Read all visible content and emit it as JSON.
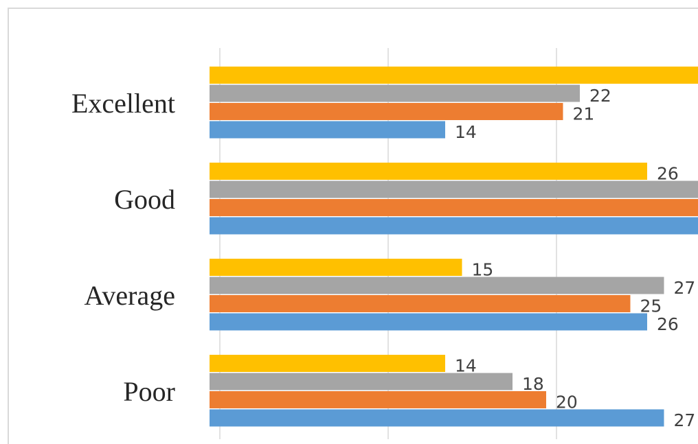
{
  "chart_data": {
    "type": "hbar",
    "categories": [
      "Excellent",
      "Good",
      "Average",
      "Poor"
    ],
    "series": [
      {
        "color": "#5b9bd5",
        "values": [
          14,
          32,
          26,
          27
        ]
      },
      {
        "color": "#ed7d31",
        "values": [
          21,
          31,
          25,
          20
        ]
      },
      {
        "color": "#a5a5a5",
        "values": [
          22,
          30,
          27,
          18
        ]
      },
      {
        "color": "#ffc000",
        "values": [
          32,
          26,
          15,
          14
        ]
      }
    ],
    "xlim": [
      0,
      29
    ],
    "xticks": [
      0,
      10,
      20
    ],
    "grid": true
  }
}
